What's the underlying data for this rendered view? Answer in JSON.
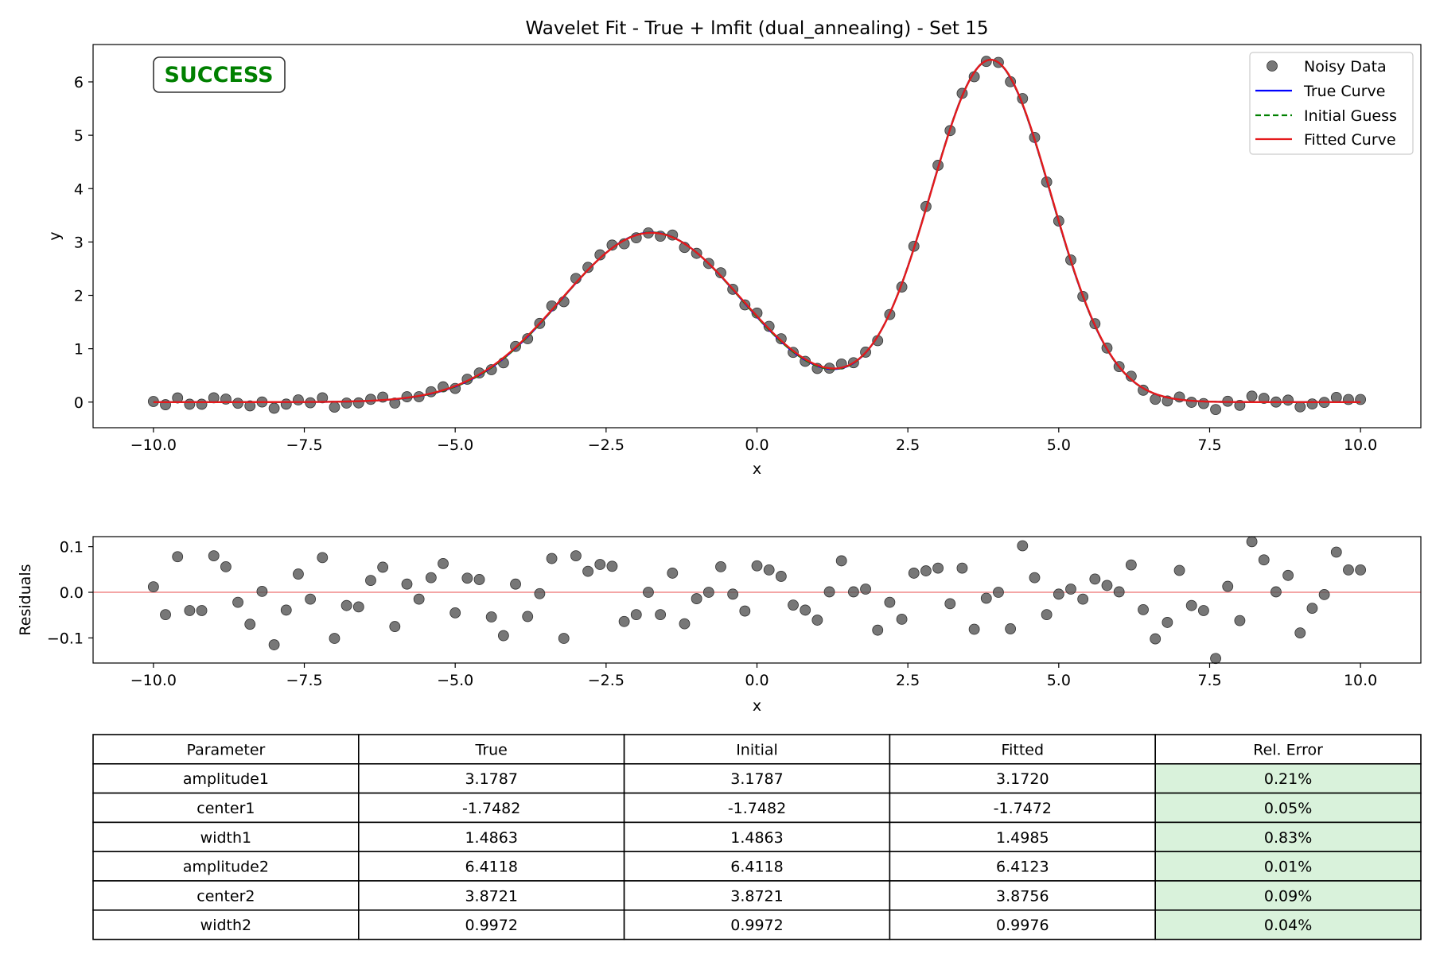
{
  "chart_data": [
    {
      "type": "line",
      "title": "Wavelet Fit - True + lmfit (dual_annealing) - Set 15",
      "xlabel": "x",
      "ylabel": "y",
      "xlim": [
        -11.0,
        11.0
      ],
      "ylim": [
        -0.48,
        6.7
      ],
      "xticks": [
        -10.0,
        -7.5,
        -5.0,
        -2.5,
        0.0,
        2.5,
        5.0,
        7.5,
        10.0
      ],
      "xtick_labels": [
        "−10.0",
        "−7.5",
        "−5.0",
        "−2.5",
        "0.0",
        "2.5",
        "5.0",
        "7.5",
        "10.0"
      ],
      "yticks": [
        0,
        1,
        2,
        3,
        4,
        5,
        6
      ],
      "ytick_labels": [
        "0",
        "1",
        "2",
        "3",
        "4",
        "5",
        "6"
      ],
      "grid": false,
      "legend_position": "top-right",
      "annotation": "SUCCESS",
      "model": "sum of two gaussians: amplitude*exp(-(x-center)^2/(2*width^2))",
      "series": [
        {
          "name": "Noisy Data",
          "kind": "scatter",
          "color": "#555555",
          "x_start": -10.0,
          "x_end": 10.0,
          "count": 101
        },
        {
          "name": "True Curve",
          "kind": "line",
          "color": "#0000ff",
          "params": {
            "amplitude1": 3.1787,
            "center1": -1.7482,
            "width1": 1.4863,
            "amplitude2": 6.4118,
            "center2": 3.8721,
            "width2": 0.9972
          }
        },
        {
          "name": "Initial Guess",
          "kind": "dashed-line",
          "color": "#008000",
          "params": {
            "amplitude1": 3.1787,
            "center1": -1.7482,
            "width1": 1.4863,
            "amplitude2": 6.4118,
            "center2": 3.8721,
            "width2": 0.9972
          }
        },
        {
          "name": "Fitted Curve",
          "kind": "line",
          "color": "#e41a1c",
          "params": {
            "amplitude1": 3.172,
            "center1": -1.7472,
            "width1": 1.4985,
            "amplitude2": 6.4123,
            "center2": 3.8756,
            "width2": 0.9976
          }
        }
      ]
    },
    {
      "type": "scatter",
      "title": "",
      "xlabel": "x",
      "ylabel": "Residuals",
      "xlim": [
        -11.0,
        11.0
      ],
      "ylim": [
        -0.155,
        0.122
      ],
      "xticks": [
        -10.0,
        -7.5,
        -5.0,
        -2.5,
        0.0,
        2.5,
        5.0,
        7.5,
        10.0
      ],
      "xtick_labels": [
        "−10.0",
        "−7.5",
        "−5.0",
        "−2.5",
        "0.0",
        "2.5",
        "5.0",
        "7.5",
        "10.0"
      ],
      "yticks": [
        -0.1,
        0.0,
        0.1
      ],
      "ytick_labels": [
        "−0.1",
        "0.0",
        "0.1"
      ],
      "reference_line": {
        "y": 0.0,
        "color": "#f4a6a6"
      },
      "series": [
        {
          "name": "Residuals",
          "color": "#555555",
          "x_start": -10.0,
          "x_end": 10.0,
          "values": [
            0.012,
            -0.049,
            0.078,
            -0.04,
            -0.04,
            0.08,
            0.056,
            -0.022,
            -0.07,
            0.002,
            -0.115,
            -0.039,
            0.04,
            -0.015,
            0.076,
            -0.101,
            -0.029,
            -0.032,
            0.026,
            0.055,
            -0.075,
            0.018,
            -0.015,
            0.032,
            0.063,
            -0.045,
            0.031,
            0.028,
            -0.054,
            -0.095,
            0.018,
            -0.053,
            -0.003,
            0.074,
            -0.101,
            0.08,
            0.046,
            0.061,
            0.057,
            -0.064,
            -0.049,
            0.0,
            -0.049,
            0.042,
            -0.069,
            -0.014,
            0.0,
            0.056,
            -0.004,
            -0.041,
            0.058,
            0.049,
            0.035,
            -0.028,
            -0.039,
            -0.061,
            0.001,
            0.069,
            0.001,
            0.007,
            -0.083,
            -0.022,
            -0.059,
            0.042,
            0.047,
            0.053,
            -0.025,
            0.053,
            -0.081,
            -0.013,
            0.0,
            -0.08,
            0.102,
            0.032,
            -0.049,
            -0.004,
            0.007,
            -0.015,
            0.029,
            0.015,
            0.001,
            0.06,
            -0.038,
            -0.102,
            -0.066,
            0.048,
            -0.029,
            -0.04,
            -0.145,
            0.013,
            -0.062,
            0.111,
            0.071,
            0.001,
            0.037,
            -0.089,
            -0.035,
            -0.005,
            0.088,
            0.049,
            0.049
          ]
        }
      ]
    },
    {
      "type": "table",
      "columns": [
        "Parameter",
        "True",
        "Initial",
        "Fitted",
        "Rel. Error"
      ],
      "rows": [
        [
          "amplitude1",
          "3.1787",
          "3.1787",
          "3.1720",
          "0.21%"
        ],
        [
          "center1",
          "-1.7482",
          "-1.7482",
          "-1.7472",
          "0.05%"
        ],
        [
          "width1",
          "1.4863",
          "1.4863",
          "1.4985",
          "0.83%"
        ],
        [
          "amplitude2",
          "6.4118",
          "6.4118",
          "6.4123",
          "0.01%"
        ],
        [
          "center2",
          "3.8721",
          "3.8721",
          "3.8756",
          "0.09%"
        ],
        [
          "width2",
          "0.9972",
          "0.9972",
          "0.9976",
          "0.04%"
        ]
      ],
      "highlight_column": "Rel. Error",
      "highlight_color": "#d9f2db"
    }
  ],
  "colors": {
    "data_points": "#555555",
    "true_curve": "#0000ff",
    "initial_guess": "#008000",
    "fitted_curve": "#e41a1c",
    "success_text": "#008000",
    "zero_line": "#f4a6a6",
    "table_highlight": "#d9f2db"
  }
}
